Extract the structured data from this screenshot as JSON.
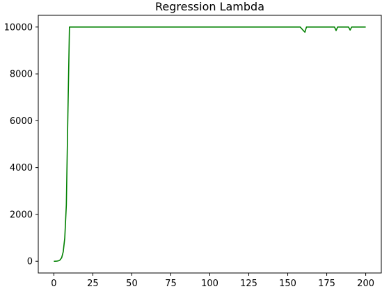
{
  "chart_data": {
    "type": "line",
    "title": "Regression Lambda",
    "xlabel": "",
    "ylabel": "",
    "xlim": [
      -10,
      210
    ],
    "ylim": [
      -500,
      10500
    ],
    "xticks": [
      0,
      25,
      50,
      75,
      100,
      125,
      150,
      175,
      200
    ],
    "yticks": [
      0,
      2000,
      4000,
      6000,
      8000,
      10000
    ],
    "grid": false,
    "series": [
      {
        "color": "#008000",
        "points": [
          [
            0,
            1
          ],
          [
            1,
            3
          ],
          [
            2,
            8
          ],
          [
            3,
            20
          ],
          [
            4,
            60
          ],
          [
            5,
            150
          ],
          [
            6,
            400
          ],
          [
            7,
            1000
          ],
          [
            8,
            2400
          ],
          [
            9,
            6300
          ],
          [
            10,
            10000
          ],
          [
            158,
            10000
          ],
          [
            160,
            9850
          ],
          [
            161,
            9780
          ],
          [
            162,
            10000
          ],
          [
            180,
            10000
          ],
          [
            181,
            9850
          ],
          [
            182,
            10000
          ],
          [
            189,
            10000
          ],
          [
            190,
            9870
          ],
          [
            191,
            10000
          ],
          [
            200,
            10000
          ]
        ]
      }
    ]
  }
}
